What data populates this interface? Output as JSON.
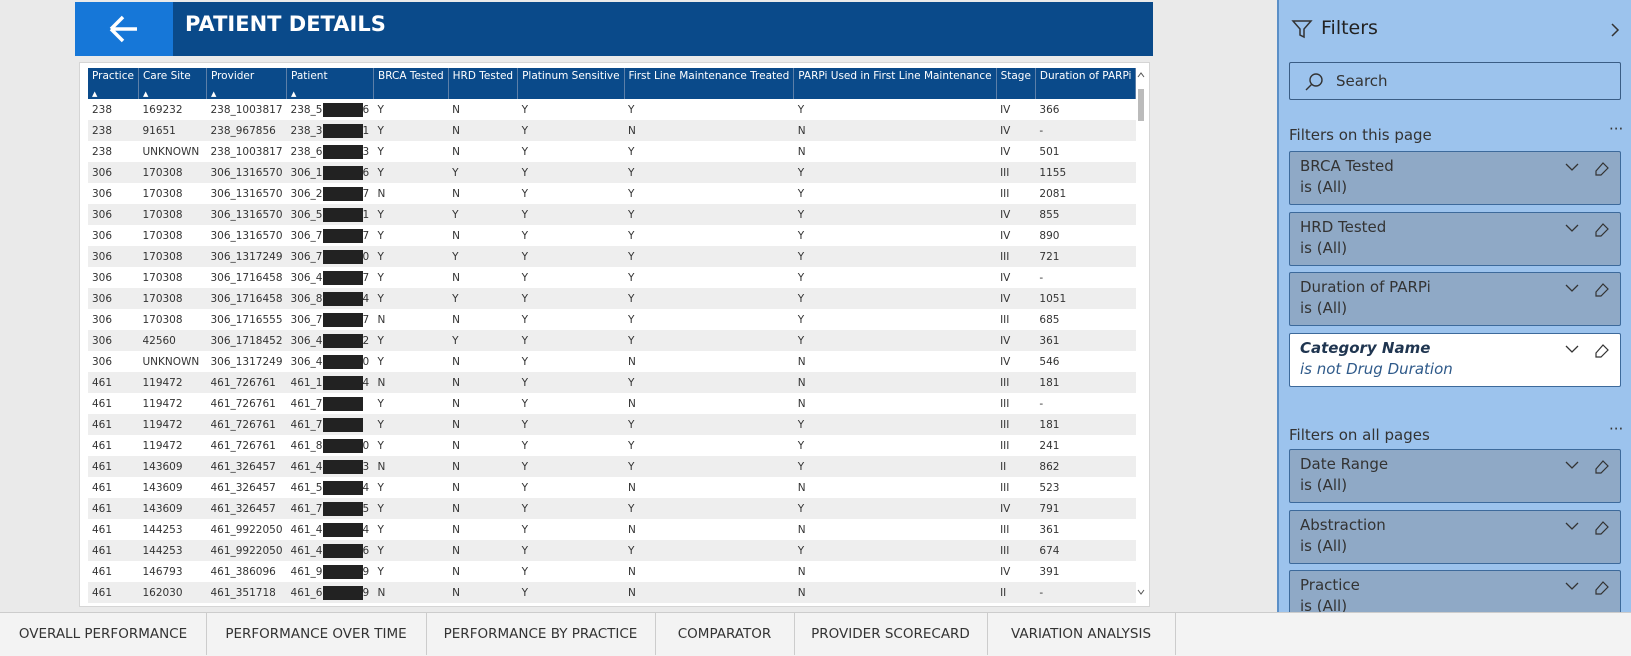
{
  "header": {
    "title": "PATIENT DETAILS"
  },
  "table": {
    "columns": [
      "Practice",
      "Care Site",
      "Provider",
      "Patient",
      "BRCA Tested",
      "HRD Tested",
      "Platinum Sensitive",
      "First Line Maintenance Treated",
      "PARPi Used in First Line Maintenance",
      "Stage",
      "Duration of PARPi"
    ],
    "rows": [
      [
        "238",
        "169232",
        "238_1003817",
        [
          "238_5",
          "6"
        ],
        "Y",
        "N",
        "Y",
        "Y",
        "Y",
        "IV",
        "366"
      ],
      [
        "238",
        "91651",
        "238_967856",
        [
          "238_3",
          "1"
        ],
        "Y",
        "N",
        "Y",
        "N",
        "N",
        "IV",
        "-"
      ],
      [
        "238",
        "UNKNOWN",
        "238_1003817",
        [
          "238_6",
          "3"
        ],
        "Y",
        "N",
        "Y",
        "Y",
        "N",
        "IV",
        "501"
      ],
      [
        "306",
        "170308",
        "306_1316570",
        [
          "306_1",
          "6"
        ],
        "Y",
        "Y",
        "Y",
        "Y",
        "Y",
        "III",
        "1155"
      ],
      [
        "306",
        "170308",
        "306_1316570",
        [
          "306_2",
          "7"
        ],
        "N",
        "N",
        "Y",
        "Y",
        "Y",
        "III",
        "2081"
      ],
      [
        "306",
        "170308",
        "306_1316570",
        [
          "306_5",
          "1"
        ],
        "Y",
        "Y",
        "Y",
        "Y",
        "Y",
        "IV",
        "855"
      ],
      [
        "306",
        "170308",
        "306_1316570",
        [
          "306_7",
          "7"
        ],
        "Y",
        "N",
        "Y",
        "Y",
        "Y",
        "IV",
        "890"
      ],
      [
        "306",
        "170308",
        "306_1317249",
        [
          "306_7",
          "0"
        ],
        "Y",
        "Y",
        "Y",
        "Y",
        "Y",
        "III",
        "721"
      ],
      [
        "306",
        "170308",
        "306_1716458",
        [
          "306_4",
          "7"
        ],
        "Y",
        "N",
        "Y",
        "Y",
        "Y",
        "IV",
        "-"
      ],
      [
        "306",
        "170308",
        "306_1716458",
        [
          "306_8",
          "4"
        ],
        "Y",
        "Y",
        "Y",
        "Y",
        "Y",
        "IV",
        "1051"
      ],
      [
        "306",
        "170308",
        "306_1716555",
        [
          "306_7",
          "7"
        ],
        "N",
        "N",
        "Y",
        "Y",
        "Y",
        "III",
        "685"
      ],
      [
        "306",
        "42560",
        "306_1718452",
        [
          "306_4",
          "2"
        ],
        "Y",
        "Y",
        "Y",
        "Y",
        "Y",
        "IV",
        "361"
      ],
      [
        "306",
        "UNKNOWN",
        "306_1317249",
        [
          "306_4",
          "0"
        ],
        "Y",
        "N",
        "Y",
        "N",
        "N",
        "IV",
        "546"
      ],
      [
        "461",
        "119472",
        "461_726761",
        [
          "461_1",
          "4"
        ],
        "N",
        "N",
        "Y",
        "Y",
        "N",
        "III",
        "181"
      ],
      [
        "461",
        "119472",
        "461_726761",
        [
          "461_7"
        ],
        "Y",
        "N",
        "Y",
        "N",
        "N",
        "III",
        "-"
      ],
      [
        "461",
        "119472",
        "461_726761",
        [
          "461_7"
        ],
        "Y",
        "N",
        "Y",
        "Y",
        "Y",
        "III",
        "181"
      ],
      [
        "461",
        "119472",
        "461_726761",
        [
          "461_8",
          "0"
        ],
        "Y",
        "N",
        "Y",
        "Y",
        "Y",
        "III",
        "241"
      ],
      [
        "461",
        "143609",
        "461_326457",
        [
          "461_4",
          "3"
        ],
        "N",
        "N",
        "Y",
        "Y",
        "Y",
        "II",
        "862"
      ],
      [
        "461",
        "143609",
        "461_326457",
        [
          "461_5",
          "4"
        ],
        "Y",
        "N",
        "Y",
        "N",
        "N",
        "III",
        "523"
      ],
      [
        "461",
        "143609",
        "461_326457",
        [
          "461_7",
          "5"
        ],
        "Y",
        "N",
        "Y",
        "Y",
        "Y",
        "IV",
        "791"
      ],
      [
        "461",
        "144253",
        "461_9922050",
        [
          "461_4",
          "4"
        ],
        "Y",
        "N",
        "Y",
        "N",
        "N",
        "III",
        "361"
      ],
      [
        "461",
        "144253",
        "461_9922050",
        [
          "461_4",
          "6"
        ],
        "Y",
        "N",
        "Y",
        "Y",
        "Y",
        "III",
        "674"
      ],
      [
        "461",
        "146793",
        "461_386096",
        [
          "461_9",
          "9"
        ],
        "Y",
        "N",
        "Y",
        "N",
        "N",
        "IV",
        "391"
      ],
      [
        "461",
        "162030",
        "461_351718",
        [
          "461_6",
          "9"
        ],
        "N",
        "N",
        "Y",
        "N",
        "N",
        "II",
        "-"
      ]
    ]
  },
  "filters": {
    "title": "Filters",
    "search": "Search",
    "page_section": "Filters on this page",
    "page_filters": [
      {
        "name": "BRCA Tested",
        "condition": "is (All)"
      },
      {
        "name": "HRD Tested",
        "condition": "is (All)"
      },
      {
        "name": "Duration of PARPi",
        "condition": "is (All)"
      },
      {
        "name": "Category Name",
        "condition": "is not Drug Duration"
      }
    ],
    "all_section": "Filters on all pages",
    "all_filters": [
      {
        "name": "Date Range",
        "condition": "is (All)"
      },
      {
        "name": "Abstraction",
        "condition": "is (All)"
      },
      {
        "name": "Practice",
        "condition": "is (All)"
      }
    ]
  },
  "tabs": [
    "OVERALL PERFORMANCE",
    "PERFORMANCE OVER TIME",
    "PERFORMANCE BY PRACTICE",
    "COMPARATOR",
    "PROVIDER SCORECARD",
    "VARIATION ANALYSIS"
  ]
}
